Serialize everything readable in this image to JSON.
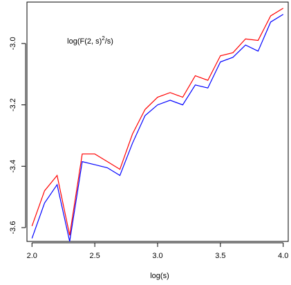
{
  "chart_data": {
    "type": "line",
    "xlabel": "log(s)",
    "ylabel": "",
    "xlim": [
      1.96,
      4.04
    ],
    "ylim": [
      -3.645,
      -2.865
    ],
    "x_ticks": [
      2.0,
      2.5,
      3.0,
      3.5,
      4.0
    ],
    "x_tick_labels": [
      "2.0",
      "2.5",
      "3.0",
      "3.5",
      "4.0"
    ],
    "y_ticks": [
      -3.6,
      -3.4,
      -3.2,
      -3.0
    ],
    "y_tick_labels": [
      "-3.6",
      "-3.4",
      "-3.2",
      "-3.0"
    ],
    "annotation": {
      "prefix": "log(F(2, s)",
      "superscript": "2",
      "suffix": "/s)",
      "x": 2.28,
      "y": -3.0
    },
    "x": [
      2.0,
      2.1,
      2.2,
      2.3,
      2.4,
      2.5,
      2.6,
      2.7,
      2.8,
      2.9,
      3.0,
      3.1,
      3.2,
      3.3,
      3.4,
      3.5,
      3.6,
      3.7,
      3.8,
      3.9,
      4.0
    ],
    "series": [
      {
        "color": "#ff0000",
        "values": [
          -3.595,
          -3.48,
          -3.43,
          -3.625,
          -3.36,
          -3.36,
          -3.385,
          -3.41,
          -3.295,
          -3.215,
          -3.175,
          -3.16,
          -3.175,
          -3.105,
          -3.12,
          -3.04,
          -3.03,
          -2.985,
          -2.99,
          -2.91,
          -2.885
        ]
      },
      {
        "color": "#0000ff",
        "values": [
          -3.635,
          -3.52,
          -3.46,
          -3.645,
          -3.385,
          -3.395,
          -3.405,
          -3.43,
          -3.325,
          -3.235,
          -3.2,
          -3.185,
          -3.2,
          -3.135,
          -3.145,
          -3.06,
          -3.045,
          -3.005,
          -3.025,
          -2.93,
          -2.905
        ]
      }
    ],
    "grid": false,
    "legend": "none"
  }
}
